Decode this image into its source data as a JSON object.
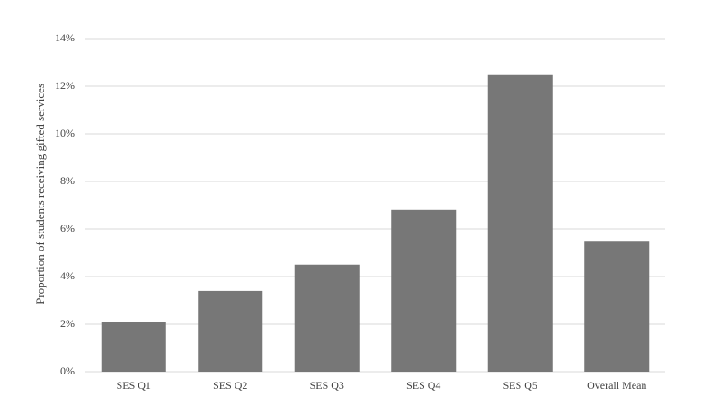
{
  "chart_data": {
    "type": "bar",
    "y_label": "Proportion of students receiving gifted services",
    "categories": [
      "SES Q1",
      "SES Q2",
      "SES Q3",
      "SES Q4",
      "SES Q5",
      "Overall Mean"
    ],
    "values": [
      2.1,
      3.4,
      4.5,
      6.8,
      12.5,
      5.5
    ],
    "color": "#777777",
    "ylim": [
      0,
      14
    ],
    "yticks": [
      {
        "value": 0,
        "label": "0%"
      },
      {
        "value": 2,
        "label": "2%"
      },
      {
        "value": 4,
        "label": "4%"
      },
      {
        "value": 6,
        "label": "6%"
      },
      {
        "value": 8,
        "label": "8%"
      },
      {
        "value": 10,
        "label": "10%"
      },
      {
        "value": 12,
        "label": "12%"
      },
      {
        "value": 14,
        "label": "14%"
      }
    ],
    "grid": true
  }
}
